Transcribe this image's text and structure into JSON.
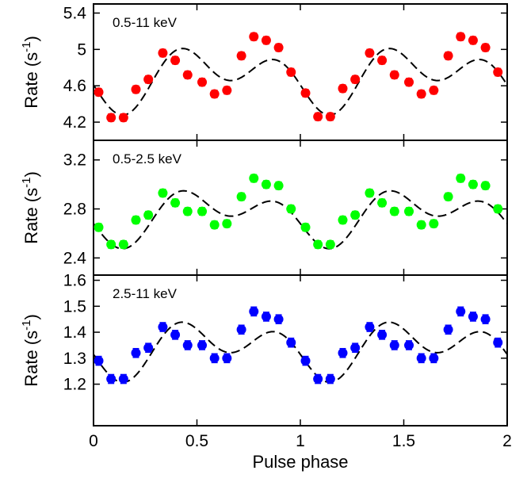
{
  "chart_data": [
    {
      "type": "scatter",
      "label": "0.5-11 keV",
      "color": "#ff0000",
      "ylabel": "Rate (s",
      "ylabel_sup": "-1",
      "ylabel_close": ")",
      "xlim": [
        0,
        2
      ],
      "ylim": [
        4.0,
        5.5
      ],
      "yticks": [
        4.2,
        4.6,
        5,
        5.4
      ],
      "ytick_labels": [
        "4.2",
        "4.6",
        "5",
        "5.4"
      ],
      "x": [
        0.025,
        0.085,
        0.145,
        0.205,
        0.265,
        0.335,
        0.395,
        0.455,
        0.525,
        0.585,
        0.645,
        0.715,
        0.775,
        0.835,
        0.895,
        0.955,
        1.025,
        1.085,
        1.145,
        1.205,
        1.265,
        1.335,
        1.395,
        1.455,
        1.525,
        1.585,
        1.645,
        1.715,
        1.775,
        1.835,
        1.895,
        1.955
      ],
      "y": [
        4.53,
        4.25,
        4.25,
        4.56,
        4.67,
        4.96,
        4.88,
        4.72,
        4.64,
        4.51,
        4.55,
        4.93,
        5.14,
        5.1,
        5.02,
        4.75,
        4.52,
        4.26,
        4.26,
        4.57,
        4.67,
        4.96,
        4.88,
        4.72,
        4.64,
        4.51,
        4.55,
        4.93,
        5.14,
        5.1,
        5.02,
        4.75
      ],
      "yerr": 0.04,
      "model": {
        "mean": 4.7,
        "a1": -0.2,
        "p1": 0.1,
        "a2": 0.23,
        "p2": -0.1
      }
    },
    {
      "type": "scatter",
      "label": "0.5-2.5 keV",
      "color": "#00ff00",
      "ylabel": "Rate (s",
      "ylabel_sup": "-1",
      "ylabel_close": ")",
      "xlim": [
        0,
        2
      ],
      "ylim": [
        2.26,
        3.36
      ],
      "yticks": [
        2.4,
        2.8,
        3.2
      ],
      "ytick_labels": [
        "2.4",
        "2.8",
        "3.2"
      ],
      "x": [
        0.025,
        0.085,
        0.145,
        0.205,
        0.265,
        0.335,
        0.395,
        0.455,
        0.525,
        0.585,
        0.645,
        0.715,
        0.775,
        0.835,
        0.895,
        0.955,
        1.025,
        1.085,
        1.145,
        1.205,
        1.265,
        1.335,
        1.395,
        1.455,
        1.525,
        1.585,
        1.645,
        1.715,
        1.775,
        1.835,
        1.895,
        1.955
      ],
      "y": [
        2.65,
        2.51,
        2.51,
        2.71,
        2.75,
        2.93,
        2.85,
        2.78,
        2.78,
        2.67,
        2.68,
        2.9,
        3.05,
        3.0,
        2.99,
        2.8,
        2.65,
        2.51,
        2.51,
        2.71,
        2.75,
        2.93,
        2.85,
        2.78,
        2.78,
        2.67,
        2.68,
        2.9,
        3.05,
        3.0,
        2.99,
        2.8
      ],
      "yerr": 0.03,
      "model": {
        "mean": 2.75,
        "a1": -0.14,
        "p1": 0.1,
        "a2": 0.14,
        "p2": -0.1
      }
    },
    {
      "type": "scatter",
      "label": "2.5-11 keV",
      "color": "#0000ff",
      "ylabel": "Rate (s",
      "ylabel_sup": "-1",
      "ylabel_close": ")",
      "xlabel": "Pulse phase",
      "xlim": [
        0,
        2
      ],
      "ylim": [
        1.04,
        1.62
      ],
      "yticks": [
        1.2,
        1.3,
        1.4,
        1.5,
        1.6
      ],
      "ytick_labels": [
        "1.2",
        "1.3",
        "1.4",
        "1.5",
        "1.6"
      ],
      "xticks": [
        0,
        0.5,
        1,
        1.5,
        2
      ],
      "xtick_labels": [
        "0",
        "0.5",
        "1",
        "1.5",
        "2"
      ],
      "x": [
        0.025,
        0.085,
        0.145,
        0.205,
        0.265,
        0.335,
        0.395,
        0.455,
        0.525,
        0.585,
        0.645,
        0.715,
        0.775,
        0.835,
        0.895,
        0.955,
        1.025,
        1.085,
        1.145,
        1.205,
        1.265,
        1.335,
        1.395,
        1.455,
        1.525,
        1.585,
        1.645,
        1.715,
        1.775,
        1.835,
        1.895,
        1.955
      ],
      "y": [
        1.29,
        1.22,
        1.22,
        1.32,
        1.34,
        1.42,
        1.39,
        1.35,
        1.35,
        1.3,
        1.3,
        1.41,
        1.48,
        1.46,
        1.45,
        1.36,
        1.29,
        1.22,
        1.22,
        1.32,
        1.34,
        1.42,
        1.39,
        1.35,
        1.35,
        1.3,
        1.3,
        1.41,
        1.48,
        1.46,
        1.45,
        1.36
      ],
      "yerr": 0.017,
      "model": {
        "mean": 1.34,
        "a1": -0.06,
        "p1": 0.1,
        "a2": 0.075,
        "p2": -0.1
      }
    }
  ]
}
